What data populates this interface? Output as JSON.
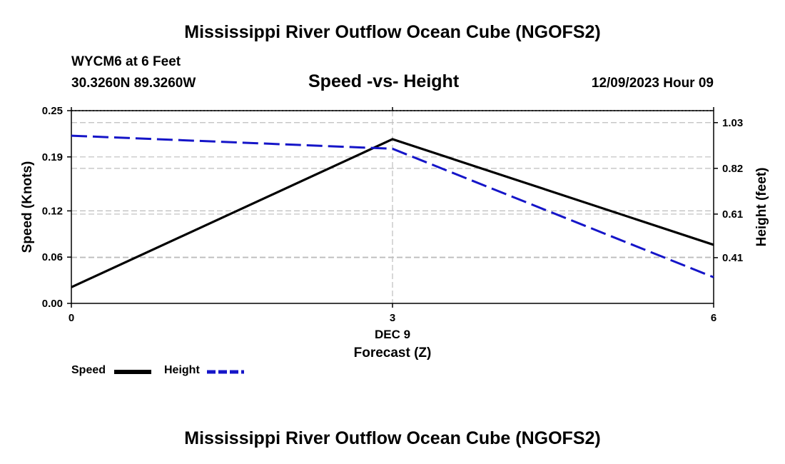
{
  "header": {
    "title": "Mississippi River Outflow Ocean Cube (NGOFS2)",
    "station": "WYCM6 at 6 Feet",
    "coords": "30.3260N  89.3260W",
    "subtitle": "Speed -vs- Height",
    "datetime": "12/09/2023 Hour 09"
  },
  "footer": {
    "title": "Mississippi River Outflow Ocean Cube (NGOFS2)"
  },
  "chart_data": {
    "type": "line",
    "x": [
      0,
      3,
      6
    ],
    "x_tick_labels": [
      "0",
      "3",
      "6"
    ],
    "x_date_label": "DEC 9",
    "xlabel": "Forecast (Z)",
    "xlim": [
      0,
      6
    ],
    "ylabel_left": "Speed (Knots)",
    "ylim_left": [
      0,
      0.25
    ],
    "left_ticks": [
      0.0,
      0.06,
      0.12,
      0.19,
      0.25
    ],
    "left_tick_labels": [
      "0.00",
      "0.06",
      "0.12",
      "0.19",
      "0.25"
    ],
    "ylabel_right": "Height (feet)",
    "ylim_right": [
      0.2,
      1.085
    ],
    "right_ticks": [
      0.41,
      0.61,
      0.82,
      1.03
    ],
    "right_tick_labels": [
      "0.41",
      "0.61",
      "0.82",
      "1.03"
    ],
    "grid": true,
    "series": [
      {
        "name": "Speed",
        "axis": "left",
        "color": "#000000",
        "style": "solid",
        "values": [
          0.021,
          0.213,
          0.076
        ]
      },
      {
        "name": "Height",
        "axis": "right",
        "color": "#1515c8",
        "style": "dashed",
        "values": [
          0.97,
          0.91,
          0.32
        ]
      }
    ]
  },
  "legend": {
    "speed_label": "Speed",
    "height_label": "Height"
  }
}
